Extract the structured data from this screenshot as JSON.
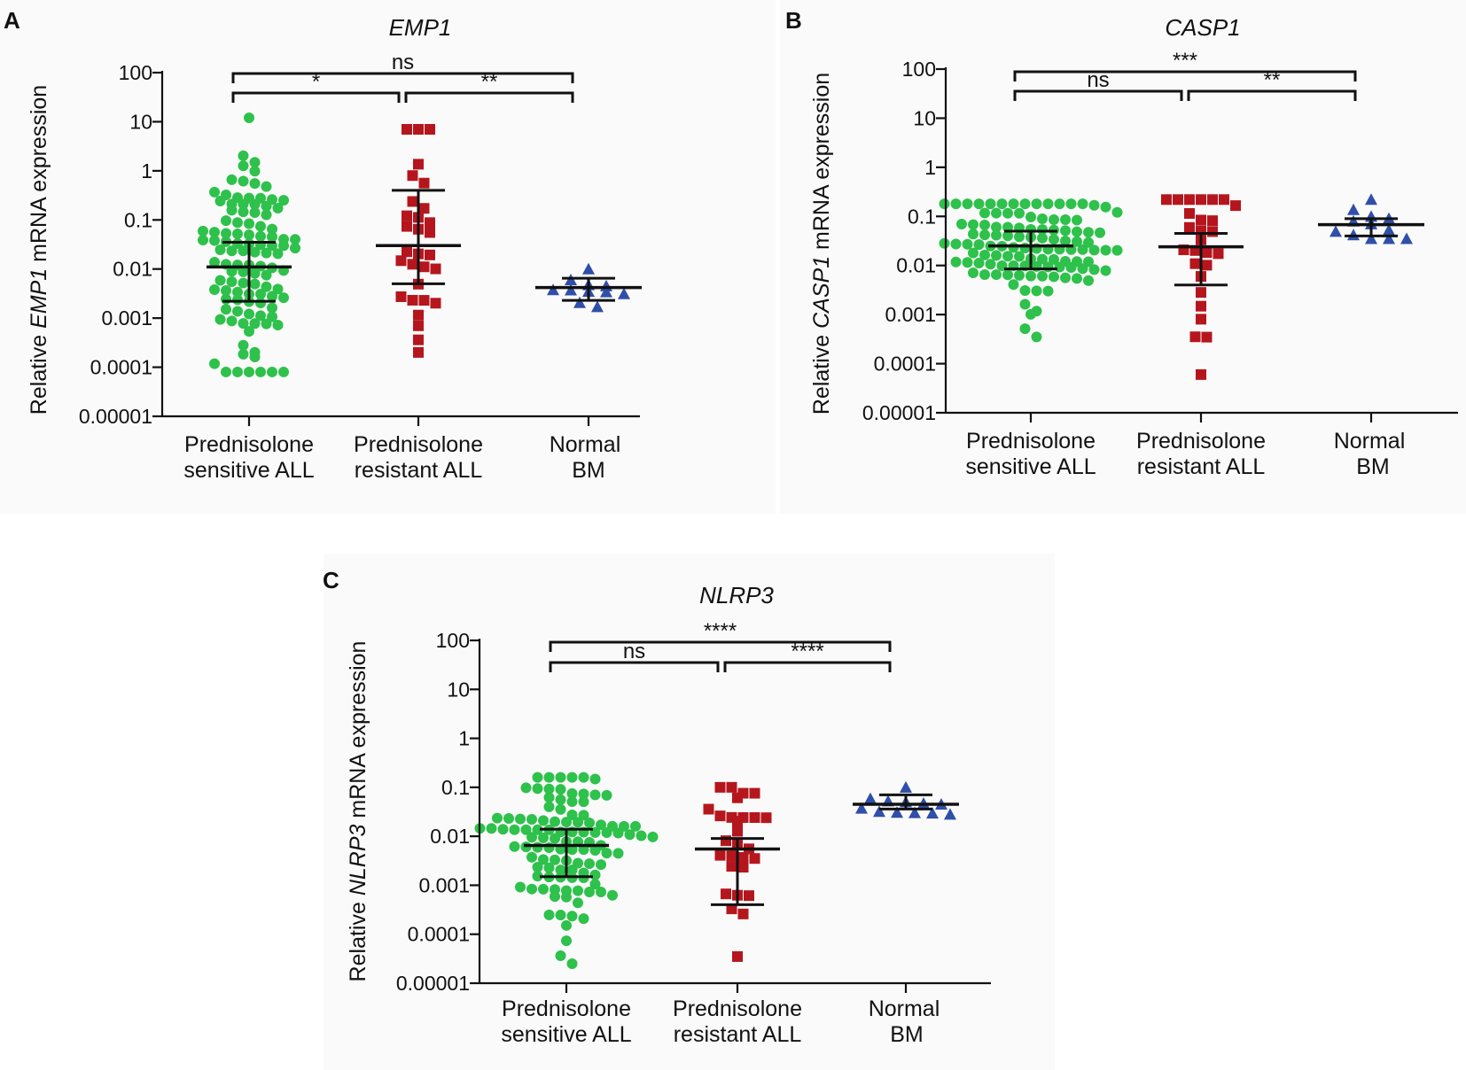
{
  "figure": {
    "letters": [
      "A",
      "B",
      "C"
    ]
  },
  "chart_data": [
    {
      "type": "scatter",
      "panel": "A",
      "title": "EMP1",
      "ylabel_prefix": "Relative ",
      "ylabel_gene": "EMP1",
      "ylabel_suffix": " mRNA expression",
      "yscale": "log",
      "ylim": [
        1e-05,
        100
      ],
      "yticks": [
        "100",
        "10",
        "1",
        "0.1",
        "0.01",
        "0.001",
        "0.0001",
        "0.00001"
      ],
      "categories": [
        {
          "line1": "Prednisolone",
          "line2": "sensitive ALL"
        },
        {
          "line1": "Prednisolone",
          "line2": "resistant  ALL"
        },
        {
          "line1": "Normal",
          "line2": "BM"
        }
      ],
      "groups": [
        {
          "name": "Prednisolone sensitive ALL",
          "marker": "circle",
          "color": "#2ec14b",
          "n": 107,
          "center": 0.011,
          "spread": 1.1,
          "min": 8e-05,
          "max": 12,
          "median": 0.011,
          "q1": 0.0022,
          "q3": 0.035
        },
        {
          "name": "Prednisolone resistant ALL",
          "marker": "square",
          "color": "#b5161d",
          "n": 30,
          "center": 0.03,
          "spread": 1.2,
          "min": 0.0002,
          "max": 7,
          "median": 0.03,
          "q1": 0.005,
          "q3": 0.4
        },
        {
          "name": "Normal BM",
          "marker": "triangle",
          "color": "#2f4fa9",
          "n": 11,
          "center": 0.0042,
          "spread": 0.18,
          "min": 0.0017,
          "max": 0.01,
          "median": 0.0042,
          "q1": 0.0023,
          "q3": 0.0065
        }
      ],
      "comparisons": [
        {
          "from": 0,
          "to": 2,
          "label": "ns",
          "level": 2
        },
        {
          "from": 0,
          "to": 1,
          "label": "*",
          "level": 1
        },
        {
          "from": 1,
          "to": 2,
          "label": "**",
          "level": 1
        }
      ]
    },
    {
      "type": "scatter",
      "panel": "B",
      "title": "CASP1",
      "ylabel_prefix": "Relative ",
      "ylabel_gene": "CASP1",
      "ylabel_suffix": " mRNA expression",
      "yscale": "log",
      "ylim": [
        1e-05,
        100
      ],
      "yticks": [
        "100",
        "10",
        "1",
        "0.1",
        "0.01",
        "0.001",
        "0.0001",
        "0.00001"
      ],
      "categories": [
        {
          "line1": "Prednisolone",
          "line2": "sensitive ALL"
        },
        {
          "line1": "Prednisolone",
          "line2": "resistant ALL"
        },
        {
          "line1": "Normal",
          "line2": "BM"
        }
      ],
      "groups": [
        {
          "name": "Prednisolone sensitive ALL",
          "marker": "circle",
          "color": "#2ec14b",
          "n": 110,
          "center": 0.025,
          "spread": 0.55,
          "min": 0.00035,
          "max": 0.18,
          "median": 0.025,
          "q1": 0.0085,
          "q3": 0.05
        },
        {
          "name": "Prednisolone resistant ALL",
          "marker": "square",
          "color": "#b5161d",
          "n": 27,
          "center": 0.024,
          "spread": 0.9,
          "min": 6e-05,
          "max": 0.22,
          "median": 0.024,
          "q1": 0.004,
          "q3": 0.045
        },
        {
          "name": "Normal BM",
          "marker": "triangle",
          "color": "#2f4fa9",
          "n": 12,
          "center": 0.068,
          "spread": 0.2,
          "min": 0.035,
          "max": 0.22,
          "median": 0.068,
          "q1": 0.04,
          "q3": 0.09
        }
      ],
      "comparisons": [
        {
          "from": 0,
          "to": 2,
          "label": "***",
          "level": 2
        },
        {
          "from": 0,
          "to": 1,
          "label": "ns",
          "level": 1
        },
        {
          "from": 1,
          "to": 2,
          "label": "**",
          "level": 1
        }
      ]
    },
    {
      "type": "scatter",
      "panel": "C",
      "title": "NLRP3",
      "ylabel_prefix": "Relative ",
      "ylabel_gene": "NLRP3",
      "ylabel_suffix": " mRNA expression",
      "yscale": "log",
      "ylim": [
        1e-05,
        100
      ],
      "yticks": [
        "100",
        "10",
        "1",
        "0.1",
        "0.01",
        "0.001",
        "0.0001",
        "0.00001"
      ],
      "categories": [
        {
          "line1": "Prednisolone",
          "line2": "sensitive ALL"
        },
        {
          "line1": "Prednisolone",
          "line2": "resistant ALL"
        },
        {
          "line1": "Normal",
          "line2": "BM"
        }
      ],
      "groups": [
        {
          "name": "Prednisolone sensitive ALL",
          "marker": "circle",
          "color": "#2ec14b",
          "n": 107,
          "center": 0.0065,
          "spread": 0.85,
          "min": 2.5e-05,
          "max": 0.16,
          "median": 0.0065,
          "q1": 0.0015,
          "q3": 0.014
        },
        {
          "name": "Prednisolone resistant ALL",
          "marker": "square",
          "color": "#b5161d",
          "n": 28,
          "center": 0.0055,
          "spread": 1.0,
          "min": 3.5e-05,
          "max": 0.1,
          "median": 0.0055,
          "q1": 0.0004,
          "q3": 0.009
        },
        {
          "name": "Normal BM",
          "marker": "triangle",
          "color": "#2f4fa9",
          "n": 12,
          "center": 0.045,
          "spread": 0.12,
          "min": 0.028,
          "max": 0.1,
          "median": 0.045,
          "q1": 0.036,
          "q3": 0.07
        }
      ],
      "comparisons": [
        {
          "from": 0,
          "to": 2,
          "label": "****",
          "level": 2
        },
        {
          "from": 0,
          "to": 1,
          "label": "ns",
          "level": 1
        },
        {
          "from": 1,
          "to": 2,
          "label": "****",
          "level": 1
        }
      ]
    }
  ]
}
